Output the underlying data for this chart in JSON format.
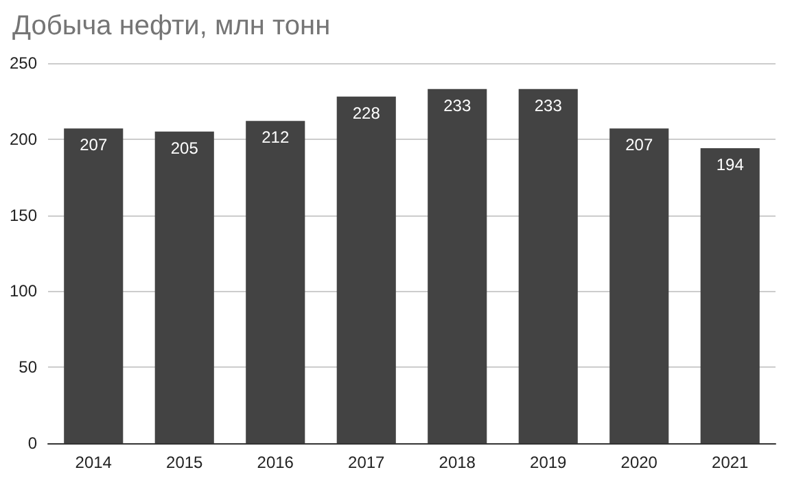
{
  "chart_data": {
    "type": "bar",
    "title": "Добыча нефти, млн тонн",
    "categories": [
      "2014",
      "2015",
      "2016",
      "2017",
      "2018",
      "2019",
      "2020",
      "2021"
    ],
    "values": [
      207,
      205,
      212,
      228,
      233,
      233,
      207,
      194
    ],
    "color": "#434343",
    "ylim": [
      0,
      250
    ],
    "yticks": [
      0,
      50,
      100,
      150,
      200,
      250
    ],
    "grid": "y",
    "data_labels": true
  }
}
